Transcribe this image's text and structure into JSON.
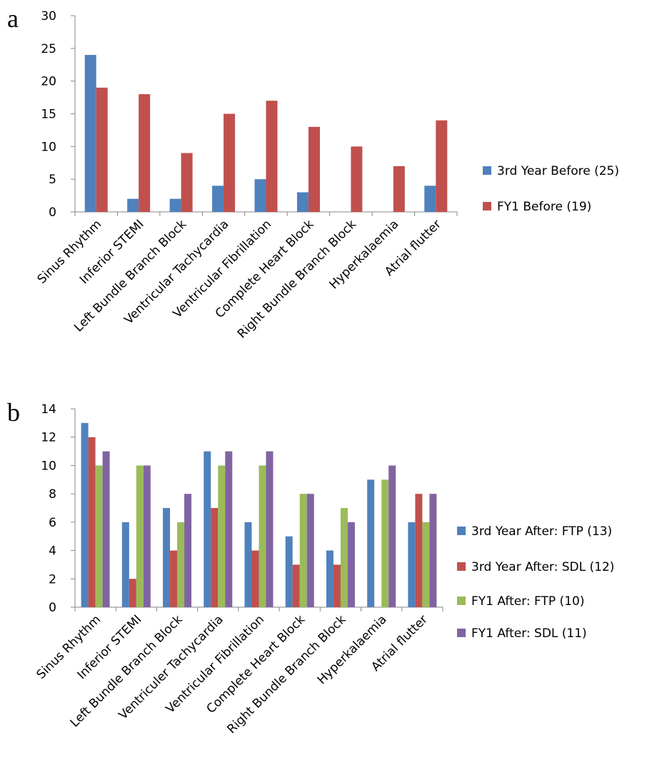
{
  "chart_data": [
    {
      "panel": "a",
      "type": "bar",
      "categories": [
        "Sinus Rhythm",
        "Inferior STEMI",
        "Left Bundle Branch Block",
        "Ventricular Tachycardia",
        "Ventricular Fibrillation",
        "Complete Heart Block",
        "Right Bundle Branch Block",
        "Hyperkalaemia",
        "Atrial flutter"
      ],
      "series": [
        {
          "name": "3rd Year Before (25)",
          "color": "#4f81bd",
          "values": [
            24,
            2,
            2,
            4,
            5,
            3,
            0,
            0,
            4
          ]
        },
        {
          "name": "FY1 Before (19)",
          "color": "#c0504d",
          "values": [
            19,
            18,
            9,
            15,
            17,
            13,
            10,
            7,
            14
          ]
        }
      ],
      "ylim": [
        0,
        30
      ],
      "yticks": [
        0,
        5,
        10,
        15,
        20,
        25,
        30
      ],
      "grid": false,
      "legend": "right"
    },
    {
      "panel": "b",
      "type": "bar",
      "categories": [
        "Sinus Rhythm",
        "Inferior STEMI",
        "Left Bundle Branch Block",
        "Ventriculer Tachycardia",
        "Ventricular Fibrillation",
        "Complete Heart Block",
        "Right Bundle Branch Block",
        "Hyperkalaemia",
        "Atrial flutter"
      ],
      "series": [
        {
          "name": "3rd Year After: FTP (13)",
          "color": "#4f81bd",
          "values": [
            13,
            6,
            7,
            11,
            6,
            5,
            4,
            9,
            6
          ]
        },
        {
          "name": "3rd Year After: SDL (12)",
          "color": "#c0504d",
          "values": [
            12,
            2,
            4,
            7,
            4,
            3,
            3,
            0,
            8
          ]
        },
        {
          "name": "FY1 After: FTP (10)",
          "color": "#9bbb59",
          "values": [
            10,
            10,
            6,
            10,
            10,
            8,
            7,
            9,
            6
          ]
        },
        {
          "name": "FY1 After: SDL (11)",
          "color": "#8064a2",
          "values": [
            11,
            10,
            8,
            11,
            11,
            8,
            6,
            10,
            8
          ]
        }
      ],
      "ylim": [
        0,
        14
      ],
      "yticks": [
        0,
        2,
        4,
        6,
        8,
        10,
        12,
        14
      ],
      "grid": false,
      "legend": "right"
    }
  ]
}
